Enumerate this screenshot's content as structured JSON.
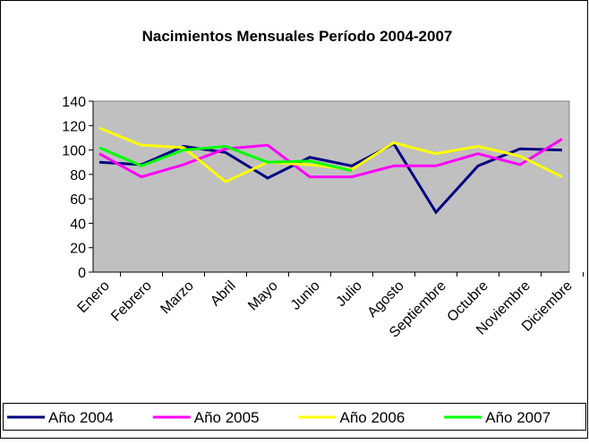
{
  "chart_data": {
    "type": "line",
    "title": "Nacimientos Mensuales Período 2004-2007",
    "categories": [
      "Enero",
      "Febrero",
      "Marzo",
      "Abril",
      "Mayo",
      "Junio",
      "Julio",
      "Agosto",
      "Septiembre",
      "Octubre",
      "Noviembre",
      "Diciembre"
    ],
    "series": [
      {
        "name": "Año 2004",
        "color": "#000080",
        "values": [
          90,
          88,
          103,
          98,
          77,
          94,
          87,
          105,
          49,
          87,
          101,
          100
        ]
      },
      {
        "name": "Año 2005",
        "color": "#ff00ff",
        "values": [
          97,
          78,
          88,
          101,
          104,
          78,
          78,
          87,
          87,
          97,
          88,
          109
        ]
      },
      {
        "name": "Año 2006",
        "color": "#ffff00",
        "values": [
          118,
          104,
          102,
          74,
          90,
          88,
          84,
          106,
          97,
          103,
          95,
          78
        ]
      },
      {
        "name": "Año 2007",
        "color": "#00ff00",
        "values": [
          102,
          87,
          100,
          103,
          90,
          91,
          83,
          null,
          null,
          null,
          null,
          null
        ]
      }
    ],
    "ylim": [
      0,
      140
    ],
    "yticks": [
      0,
      20,
      40,
      60,
      80,
      100,
      120,
      140
    ],
    "legend": "bottom",
    "plot_background": "#c0c0c0"
  }
}
